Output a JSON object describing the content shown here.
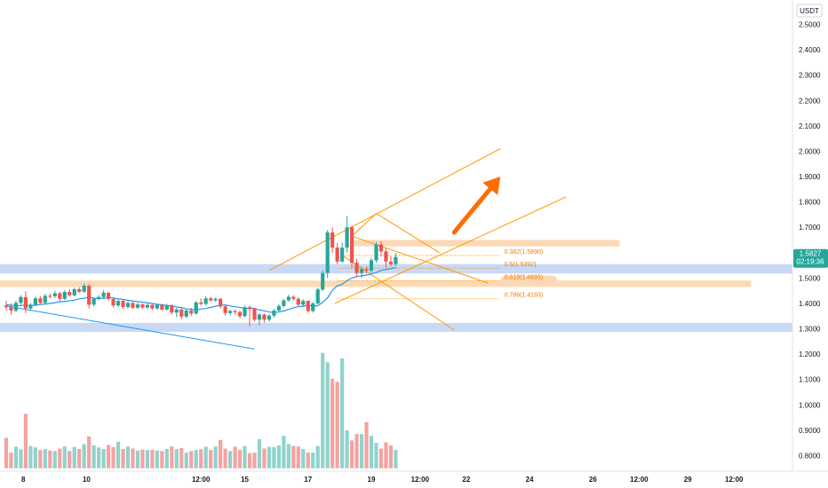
{
  "chart_data": {
    "type": "candlestick",
    "currency": "USDT",
    "colors": {
      "up": "#26a69a",
      "down": "#ef5350",
      "volume_up": "#8fd3cc",
      "volume_down": "#f4a3a1",
      "ema": "#2196f3",
      "orange": "#ff9800",
      "zone_orange": "#fcd9b4",
      "zone_blue": "#c7d9f5",
      "arrow": "#ff6d00",
      "price_badge": "#26a69a"
    },
    "y_axis": {
      "ylim": [
        0.75,
        2.58
      ],
      "ticks": [
        2.5,
        2.4,
        2.3,
        2.2,
        2.1,
        2.0,
        1.9,
        1.8,
        1.7,
        1.6,
        1.5,
        1.4,
        1.3,
        1.2,
        1.1,
        1.0,
        0.9,
        0.8
      ],
      "tick_labels": [
        "2.5000",
        "2.4000",
        "2.3000",
        "2.2000",
        "2.1000",
        "2.0000",
        "1.9000",
        "1.8000",
        "1.7000",
        "1.6000",
        "1.5000",
        "1.4000",
        "1.3000",
        "1.2000",
        "1.1000",
        "1.0000",
        "0.9000",
        "0.8000"
      ]
    },
    "x_axis": {
      "labels": [
        {
          "text": "8",
          "t": 3.5
        },
        {
          "text": "10",
          "t": 16.5
        },
        {
          "text": "12:00",
          "t": 40
        },
        {
          "text": "15",
          "t": 49
        },
        {
          "text": "17",
          "t": 62
        },
        {
          "text": "19",
          "t": 75
        },
        {
          "text": "12:00",
          "t": 85
        },
        {
          "text": "22",
          "t": 94.5
        },
        {
          "text": "24",
          "t": 107.5
        },
        {
          "text": "26",
          "t": 120.5
        },
        {
          "text": "12:00",
          "t": 130
        },
        {
          "text": "29",
          "t": 140
        },
        {
          "text": "12:00",
          "t": 149.5
        }
      ]
    },
    "last_price": {
      "value": 1.5827,
      "label": "1.5827",
      "countdown": "02:19:36"
    },
    "candles": [
      [
        1.392,
        1.385,
        1.41,
        1.372
      ],
      [
        1.385,
        1.372,
        1.4,
        1.355
      ],
      [
        1.372,
        1.402,
        1.41,
        1.365
      ],
      [
        1.402,
        1.425,
        1.432,
        1.395
      ],
      [
        1.425,
        1.38,
        1.448,
        1.362
      ],
      [
        1.38,
        1.395,
        1.402,
        1.37
      ],
      [
        1.395,
        1.42,
        1.426,
        1.39
      ],
      [
        1.42,
        1.402,
        1.428,
        1.395
      ],
      [
        1.402,
        1.43,
        1.438,
        1.396
      ],
      [
        1.43,
        1.428,
        1.44,
        1.42
      ],
      [
        1.428,
        1.44,
        1.45,
        1.422
      ],
      [
        1.44,
        1.418,
        1.446,
        1.41
      ],
      [
        1.418,
        1.445,
        1.452,
        1.412
      ],
      [
        1.445,
        1.432,
        1.456,
        1.426
      ],
      [
        1.432,
        1.456,
        1.462,
        1.428
      ],
      [
        1.456,
        1.446,
        1.464,
        1.44
      ],
      [
        1.446,
        1.47,
        1.478,
        1.442
      ],
      [
        1.47,
        1.395,
        1.476,
        1.38
      ],
      [
        1.395,
        1.418,
        1.424,
        1.388
      ],
      [
        1.418,
        1.425,
        1.432,
        1.412
      ],
      [
        1.425,
        1.442,
        1.452,
        1.42
      ],
      [
        1.442,
        1.418,
        1.446,
        1.41
      ],
      [
        1.418,
        1.392,
        1.422,
        1.384
      ],
      [
        1.392,
        1.41,
        1.416,
        1.386
      ],
      [
        1.41,
        1.386,
        1.414,
        1.378
      ],
      [
        1.386,
        1.402,
        1.408,
        1.38
      ],
      [
        1.402,
        1.383,
        1.406,
        1.378
      ],
      [
        1.383,
        1.396,
        1.402,
        1.378
      ],
      [
        1.396,
        1.384,
        1.4,
        1.378
      ],
      [
        1.384,
        1.394,
        1.4,
        1.378
      ],
      [
        1.394,
        1.38,
        1.398,
        1.374
      ],
      [
        1.38,
        1.394,
        1.4,
        1.376
      ],
      [
        1.394,
        1.376,
        1.398,
        1.37
      ],
      [
        1.376,
        1.392,
        1.398,
        1.372
      ],
      [
        1.392,
        1.364,
        1.396,
        1.356
      ],
      [
        1.364,
        1.376,
        1.382,
        1.346
      ],
      [
        1.376,
        1.348,
        1.382,
        1.338
      ],
      [
        1.348,
        1.372,
        1.378,
        1.342
      ],
      [
        1.372,
        1.36,
        1.382,
        1.35
      ],
      [
        1.36,
        1.404,
        1.41,
        1.356
      ],
      [
        1.404,
        1.398,
        1.42,
        1.392
      ],
      [
        1.398,
        1.42,
        1.428,
        1.392
      ],
      [
        1.42,
        1.412,
        1.426,
        1.406
      ],
      [
        1.412,
        1.418,
        1.424,
        1.406
      ],
      [
        1.418,
        1.388,
        1.422,
        1.38
      ],
      [
        1.388,
        1.362,
        1.392,
        1.352
      ],
      [
        1.362,
        1.37,
        1.376,
        1.352
      ],
      [
        1.37,
        1.366,
        1.376,
        1.356
      ],
      [
        1.366,
        1.35,
        1.372,
        1.34
      ],
      [
        1.35,
        1.385,
        1.392,
        1.345
      ],
      [
        1.385,
        1.378,
        1.392,
        1.31
      ],
      [
        1.378,
        1.336,
        1.382,
        1.328
      ],
      [
        1.336,
        1.356,
        1.362,
        1.314
      ],
      [
        1.356,
        1.336,
        1.36,
        1.324
      ],
      [
        1.336,
        1.352,
        1.358,
        1.328
      ],
      [
        1.352,
        1.372,
        1.378,
        1.344
      ],
      [
        1.372,
        1.39,
        1.398,
        1.366
      ],
      [
        1.39,
        1.412,
        1.418,
        1.384
      ],
      [
        1.412,
        1.426,
        1.434,
        1.406
      ],
      [
        1.426,
        1.418,
        1.432,
        1.41
      ],
      [
        1.418,
        1.395,
        1.424,
        1.388
      ],
      [
        1.395,
        1.41,
        1.416,
        1.386
      ],
      [
        1.41,
        1.37,
        1.412,
        1.364
      ],
      [
        1.37,
        1.4,
        1.406,
        1.364
      ],
      [
        1.4,
        1.455,
        1.462,
        1.396
      ],
      [
        1.455,
        1.52,
        1.53,
        1.448
      ],
      [
        1.52,
        1.68,
        1.69,
        1.5
      ],
      [
        1.68,
        1.62,
        1.7,
        1.6
      ],
      [
        1.62,
        1.565,
        1.64,
        1.555
      ],
      [
        1.565,
        1.62,
        1.64,
        1.56
      ],
      [
        1.62,
        1.7,
        1.745,
        1.6
      ],
      [
        1.7,
        1.56,
        1.705,
        1.54
      ],
      [
        1.56,
        1.52,
        1.575,
        1.505
      ],
      [
        1.52,
        1.535,
        1.545,
        1.5
      ],
      [
        1.535,
        1.53,
        1.545,
        1.518
      ],
      [
        1.53,
        1.57,
        1.58,
        1.52
      ],
      [
        1.57,
        1.632,
        1.642,
        1.56
      ],
      [
        1.632,
        1.605,
        1.645,
        1.585
      ],
      [
        1.605,
        1.565,
        1.62,
        1.54
      ],
      [
        1.565,
        1.555,
        1.585,
        1.545
      ],
      [
        1.555,
        1.583,
        1.598,
        1.548
      ]
    ],
    "volumes": [
      0.87,
      0.812,
      0.835,
      0.825,
      0.965,
      0.838,
      0.832,
      0.822,
      0.826,
      0.82,
      0.818,
      0.828,
      0.836,
      0.818,
      0.834,
      0.826,
      0.845,
      0.876,
      0.84,
      0.832,
      0.826,
      0.842,
      0.834,
      0.855,
      0.826,
      0.836,
      0.828,
      0.82,
      0.824,
      0.822,
      0.823,
      0.82,
      0.818,
      0.826,
      0.836,
      0.826,
      0.83,
      0.812,
      0.818,
      0.822,
      0.825,
      0.835,
      0.822,
      0.836,
      0.862,
      0.828,
      0.818,
      0.835,
      0.822,
      0.838,
      0.81,
      0.812,
      0.865,
      0.828,
      0.835,
      0.834,
      0.84,
      0.878,
      0.846,
      0.838,
      0.836,
      0.826,
      0.812,
      0.812,
      0.838,
      1.205,
      1.168,
      1.103,
      1.091,
      1.183,
      0.9,
      0.86,
      0.885,
      0.885,
      0.932,
      0.878,
      0.85,
      0.828,
      0.852,
      0.84,
      0.822
    ],
    "ema": [
      1.395,
      1.393,
      1.391,
      1.392,
      1.394,
      1.392,
      1.393,
      1.396,
      1.397,
      1.4,
      1.403,
      1.407,
      1.407,
      1.411,
      1.413,
      1.418,
      1.42,
      1.426,
      1.42,
      1.42,
      1.42,
      1.423,
      1.422,
      1.418,
      1.416,
      1.412,
      1.41,
      1.407,
      1.405,
      1.402,
      1.4,
      1.396,
      1.395,
      1.391,
      1.391,
      1.386,
      1.384,
      1.378,
      1.377,
      1.374,
      1.378,
      1.38,
      1.384,
      1.389,
      1.393,
      1.394,
      1.39,
      1.387,
      1.385,
      1.38,
      1.381,
      1.38,
      1.374,
      1.371,
      1.366,
      1.365,
      1.366,
      1.37,
      1.376,
      1.383,
      1.387,
      1.389,
      1.393,
      1.389,
      1.391,
      1.404,
      1.422,
      1.452,
      1.469,
      1.475,
      1.49,
      1.5,
      1.506,
      1.509,
      1.512,
      1.516,
      1.522,
      1.53,
      1.534,
      1.537,
      1.542
    ],
    "zones": [
      {
        "y1": 1.65,
        "y2": 1.625,
        "t1": 71,
        "t2": 126,
        "color": "orange"
      },
      {
        "y1": 1.555,
        "y2": 1.518,
        "t1": -8,
        "t2": 170,
        "color": "blue"
      },
      {
        "y1": 1.49,
        "y2": 1.465,
        "t1": -8,
        "t2": 153,
        "color": "orange"
      },
      {
        "y1": 1.323,
        "y2": 1.288,
        "t1": -8,
        "t2": 170,
        "color": "blue"
      }
    ],
    "fib_levels": [
      {
        "label": "0.382(1.5890)",
        "value": 1.589
      },
      {
        "label": "0.5(1.5392)",
        "value": 1.5392
      },
      {
        "label": "0.618(1.4893)",
        "value": 1.4893,
        "highlight": true
      },
      {
        "label": "0.786(1.4183)",
        "value": 1.4183
      }
    ],
    "trendlines": [
      {
        "t1": 0,
        "p1": 1.39,
        "t2": 51,
        "p2": 1.22,
        "color": "ema"
      },
      {
        "t1": 54,
        "p1": 1.53,
        "t2": 101.5,
        "p2": 2.01,
        "color": "orange"
      },
      {
        "t1": 67.5,
        "p1": 1.4,
        "t2": 115,
        "p2": 1.82,
        "color": "orange"
      },
      {
        "t1": 71,
        "p1": 1.665,
        "t2": 99,
        "p2": 1.48,
        "color": "orange"
      },
      {
        "t1": 69,
        "p1": 1.59,
        "t2": 92,
        "p2": 1.295,
        "color": "orange"
      },
      {
        "t1": 71,
        "p1": 1.665,
        "t2": 76,
        "p2": 1.755,
        "color": "orange"
      },
      {
        "t1": 76,
        "p1": 1.755,
        "t2": 89,
        "p2": 1.6,
        "color": "orange"
      }
    ],
    "arrow": {
      "t1": 92,
      "p1": 1.68,
      "t2": 101.5,
      "p2": 1.9
    }
  }
}
